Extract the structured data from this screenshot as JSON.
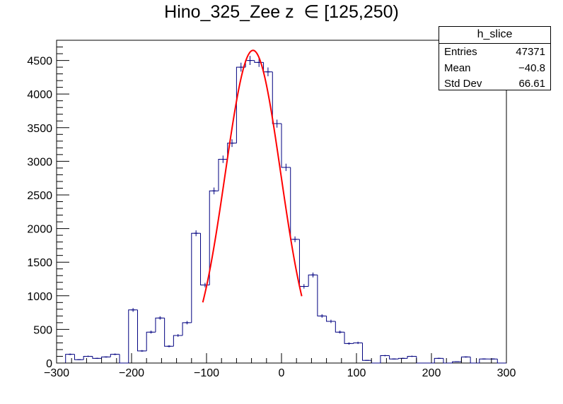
{
  "title": "Hino_325_Zee z  ∈ [125,250)",
  "stats": {
    "name": "h_slice",
    "rows": [
      {
        "label": "Entries",
        "value": "47371"
      },
      {
        "label": "Mean",
        "value": "−40.8"
      },
      {
        "label": "Std Dev",
        "value": "66.61"
      }
    ]
  },
  "colors": {
    "histogram": "#000080",
    "fit": "#ff0000",
    "axis": "#000000"
  },
  "chart_data": {
    "type": "histogram",
    "title": "Hino_325_Zee z  ∈ [125,250)",
    "xlabel": "",
    "ylabel": "",
    "xlim": [
      -300,
      300
    ],
    "ylim": [
      0,
      4800
    ],
    "x_ticks": [
      -300,
      -200,
      -100,
      0,
      100,
      200,
      300
    ],
    "x_tick_labels": [
      "−300",
      "−200",
      "−100",
      "0",
      "100",
      "200",
      "300"
    ],
    "y_ticks": [
      0,
      500,
      1000,
      1500,
      2000,
      2500,
      3000,
      3500,
      4000,
      4500
    ],
    "y_tick_labels": [
      "0",
      "500",
      "1000",
      "1500",
      "2000",
      "2500",
      "3000",
      "3500",
      "4000",
      "4500"
    ],
    "bin_width": 12,
    "bin_centers": [
      -294,
      -282,
      -270,
      -258,
      -246,
      -234,
      -222,
      -210,
      -198,
      -186,
      -174,
      -162,
      -150,
      -138,
      -126,
      -114,
      -102,
      -90,
      -78,
      -66,
      -54,
      -42,
      -30,
      -18,
      -6,
      6,
      18,
      30,
      42,
      54,
      66,
      78,
      90,
      102,
      114,
      126,
      138,
      150,
      162,
      174,
      186,
      198,
      210,
      222,
      234,
      246,
      258,
      270,
      282,
      294
    ],
    "counts": [
      0,
      130,
      50,
      100,
      70,
      90,
      130,
      0,
      790,
      180,
      460,
      670,
      250,
      410,
      600,
      1930,
      1160,
      2560,
      3030,
      3270,
      4400,
      4500,
      4470,
      4330,
      3560,
      2910,
      1840,
      1140,
      1310,
      700,
      620,
      460,
      290,
      300,
      40,
      0,
      110,
      60,
      70,
      100,
      0,
      0,
      70,
      0,
      20,
      90,
      0,
      60,
      60,
      0
    ],
    "fit": {
      "function": "gaus",
      "constant": 4650,
      "mean": -38,
      "sigma": 37,
      "range": [
        -105,
        27
      ]
    },
    "grid": false,
    "legend": "none"
  }
}
